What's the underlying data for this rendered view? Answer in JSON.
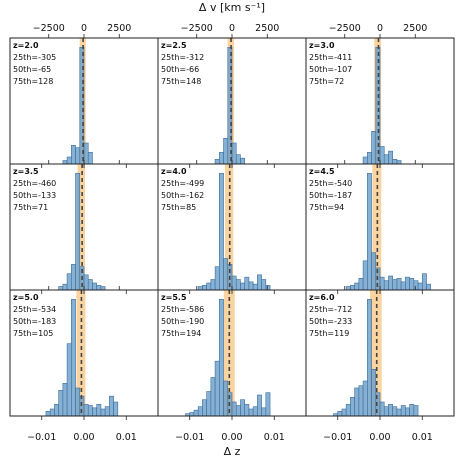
{
  "chart_data": {
    "type": "bar",
    "xlabel": "Δ z",
    "top_xlabel": "Δ v [km s⁻¹]",
    "x_ticks": [
      -0.01,
      0.0,
      0.01
    ],
    "x_tick_labels": [
      "−0.01",
      "0.00",
      "0.01"
    ],
    "top_ticks": [
      -2500,
      0,
      2500
    ],
    "top_tick_labels": [
      "−2500",
      "0",
      "2500"
    ],
    "xlim": [
      -0.0175,
      0.0175
    ],
    "bin_width": 0.001,
    "colors": {
      "bar": "#6b9fcb",
      "bar_edge": "#3d6f9c",
      "band": "#f8c98a",
      "median_line": "#444444"
    },
    "panels": [
      {
        "z_label": "z=2.0",
        "p25_label": "25th=-305",
        "p50_label": "50th=-65",
        "p75_label": "75th=128",
        "p25": -305,
        "p50": -65,
        "p75": 128,
        "bins_start": -0.005,
        "counts": [
          3,
          6,
          16,
          14,
          100,
          18,
          10
        ]
      },
      {
        "z_label": "z=2.5",
        "p25_label": "25th=-312",
        "p50_label": "50th=-66",
        "p75_label": "75th=148",
        "p25": -312,
        "p50": -66,
        "p75": 148,
        "bins_start": -0.004,
        "counts": [
          4,
          10,
          22,
          100,
          18,
          8,
          5
        ]
      },
      {
        "z_label": "z=3.0",
        "p25_label": "25th=-411",
        "p50_label": "50th=-107",
        "p75_label": "75th=72",
        "p25": -411,
        "p50": -107,
        "p75": 72,
        "bins_start": -0.004,
        "counts": [
          6,
          10,
          28,
          100,
          15,
          8,
          11,
          4,
          3
        ]
      },
      {
        "z_label": "z=3.5",
        "p25_label": "25th=-460",
        "p50_label": "50th=-133",
        "p75_label": "75th=71",
        "p25": -460,
        "p50": -133,
        "p75": 71,
        "bins_start": -0.006,
        "counts": [
          3,
          5,
          14,
          22,
          100,
          20,
          13,
          9,
          6,
          4,
          3
        ]
      },
      {
        "z_label": "z=4.0",
        "p25_label": "25th=-499",
        "p50_label": "50th=-162",
        "p75_label": "75th=85",
        "p25": -499,
        "p50": -162,
        "p75": 85,
        "bins_start": -0.008,
        "counts": [
          3,
          4,
          6,
          9,
          20,
          100,
          27,
          22,
          12,
          9,
          6,
          11,
          7,
          5,
          13,
          9,
          4
        ]
      },
      {
        "z_label": "z=4.5",
        "p25_label": "25th=-540",
        "p50_label": "50th=-187",
        "p75_label": "75th=94",
        "p25": -540,
        "p50": -187,
        "p75": 94,
        "bins_start": -0.008,
        "counts": [
          3,
          4,
          6,
          10,
          25,
          100,
          32,
          19,
          11,
          8,
          12,
          9,
          10,
          7,
          11,
          10,
          8,
          6,
          14,
          5
        ]
      },
      {
        "z_label": "z=5.0",
        "p25_label": "25th=-534",
        "p50_label": "50th=-183",
        "p75_label": "75th=105",
        "p25": -534,
        "p50": -183,
        "p75": 105,
        "bins_start": -0.009,
        "counts": [
          4,
          6,
          10,
          22,
          28,
          62,
          100,
          24,
          17,
          10,
          9,
          7,
          10,
          6,
          8,
          17,
          12
        ]
      },
      {
        "z_label": "z=5.5",
        "p25_label": "25th=-586",
        "p50_label": "50th=-190",
        "p75_label": "75th=194",
        "p25": -586,
        "p50": -190,
        "p75": 194,
        "bins_start": -0.011,
        "counts": [
          2,
          3,
          5,
          8,
          14,
          21,
          33,
          47,
          100,
          30,
          20,
          12,
          9,
          14,
          10,
          6,
          8,
          18,
          7,
          20
        ]
      },
      {
        "z_label": "z=6.0",
        "p25_label": "25th=-712",
        "p50_label": "50th=-233",
        "p75_label": "75th=119",
        "p25": -712,
        "p50": -233,
        "p75": 119,
        "bins_start": -0.011,
        "counts": [
          2,
          4,
          6,
          10,
          16,
          24,
          26,
          30,
          100,
          40,
          20,
          12,
          8,
          10,
          8,
          6,
          9,
          7,
          10,
          9
        ]
      }
    ]
  }
}
